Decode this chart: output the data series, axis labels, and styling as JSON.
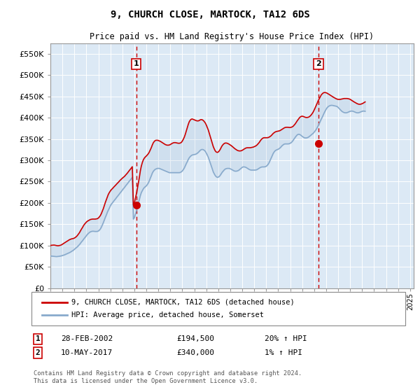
{
  "title": "9, CHURCH CLOSE, MARTOCK, TA12 6DS",
  "subtitle": "Price paid vs. HM Land Registry's House Price Index (HPI)",
  "bg_color": "#dce9f5",
  "plot_bg_color": "#dce9f5",
  "red_line_color": "#cc0000",
  "blue_line_color": "#88aacc",
  "ylim": [
    0,
    575000
  ],
  "yticks": [
    0,
    50000,
    100000,
    150000,
    200000,
    250000,
    300000,
    350000,
    400000,
    450000,
    500000,
    550000
  ],
  "ytick_labels": [
    "£0",
    "£50K",
    "£100K",
    "£150K",
    "£200K",
    "£250K",
    "£300K",
    "£350K",
    "£400K",
    "£450K",
    "£500K",
    "£550K"
  ],
  "sale1_date": 2002.16,
  "sale1_price": 194500,
  "sale1_label": "1",
  "sale2_date": 2017.36,
  "sale2_price": 340000,
  "sale2_label": "2",
  "legend_line1": "9, CHURCH CLOSE, MARTOCK, TA12 6DS (detached house)",
  "legend_line2": "HPI: Average price, detached house, Somerset",
  "table_row1": [
    "1",
    "28-FEB-2002",
    "£194,500",
    "20% ↑ HPI"
  ],
  "table_row2": [
    "2",
    "10-MAY-2017",
    "£340,000",
    "1% ↑ HPI"
  ],
  "footnote": "Contains HM Land Registry data © Crown copyright and database right 2024.\nThis data is licensed under the Open Government Licence v3.0.",
  "hpi_data": {
    "years": [
      1995.0,
      1995.08,
      1995.17,
      1995.25,
      1995.33,
      1995.42,
      1995.5,
      1995.58,
      1995.67,
      1995.75,
      1995.83,
      1995.92,
      1996.0,
      1996.08,
      1996.17,
      1996.25,
      1996.33,
      1996.42,
      1996.5,
      1996.58,
      1996.67,
      1996.75,
      1996.83,
      1996.92,
      1997.0,
      1997.08,
      1997.17,
      1997.25,
      1997.33,
      1997.42,
      1997.5,
      1997.58,
      1997.67,
      1997.75,
      1997.83,
      1997.92,
      1998.0,
      1998.08,
      1998.17,
      1998.25,
      1998.33,
      1998.42,
      1998.5,
      1998.58,
      1998.67,
      1998.75,
      1998.83,
      1998.92,
      1999.0,
      1999.08,
      1999.17,
      1999.25,
      1999.33,
      1999.42,
      1999.5,
      1999.58,
      1999.67,
      1999.75,
      1999.83,
      1999.92,
      2000.0,
      2000.08,
      2000.17,
      2000.25,
      2000.33,
      2000.42,
      2000.5,
      2000.58,
      2000.67,
      2000.75,
      2000.83,
      2000.92,
      2001.0,
      2001.08,
      2001.17,
      2001.25,
      2001.33,
      2001.42,
      2001.5,
      2001.58,
      2001.67,
      2001.75,
      2001.83,
      2001.92,
      2002.0,
      2002.08,
      2002.17,
      2002.25,
      2002.33,
      2002.42,
      2002.5,
      2002.58,
      2002.67,
      2002.75,
      2002.83,
      2002.92,
      2003.0,
      2003.08,
      2003.17,
      2003.25,
      2003.33,
      2003.42,
      2003.5,
      2003.58,
      2003.67,
      2003.75,
      2003.83,
      2003.92,
      2004.0,
      2004.08,
      2004.17,
      2004.25,
      2004.33,
      2004.42,
      2004.5,
      2004.58,
      2004.67,
      2004.75,
      2004.83,
      2004.92,
      2005.0,
      2005.08,
      2005.17,
      2005.25,
      2005.33,
      2005.42,
      2005.5,
      2005.58,
      2005.67,
      2005.75,
      2005.83,
      2005.92,
      2006.0,
      2006.08,
      2006.17,
      2006.25,
      2006.33,
      2006.42,
      2006.5,
      2006.58,
      2006.67,
      2006.75,
      2006.83,
      2006.92,
      2007.0,
      2007.08,
      2007.17,
      2007.25,
      2007.33,
      2007.42,
      2007.5,
      2007.58,
      2007.67,
      2007.75,
      2007.83,
      2007.92,
      2008.0,
      2008.08,
      2008.17,
      2008.25,
      2008.33,
      2008.42,
      2008.5,
      2008.58,
      2008.67,
      2008.75,
      2008.83,
      2008.92,
      2009.0,
      2009.08,
      2009.17,
      2009.25,
      2009.33,
      2009.42,
      2009.5,
      2009.58,
      2009.67,
      2009.75,
      2009.83,
      2009.92,
      2010.0,
      2010.08,
      2010.17,
      2010.25,
      2010.33,
      2010.42,
      2010.5,
      2010.58,
      2010.67,
      2010.75,
      2010.83,
      2010.92,
      2011.0,
      2011.08,
      2011.17,
      2011.25,
      2011.33,
      2011.42,
      2011.5,
      2011.58,
      2011.67,
      2011.75,
      2011.83,
      2011.92,
      2012.0,
      2012.08,
      2012.17,
      2012.25,
      2012.33,
      2012.42,
      2012.5,
      2012.58,
      2012.67,
      2012.75,
      2012.83,
      2012.92,
      2013.0,
      2013.08,
      2013.17,
      2013.25,
      2013.33,
      2013.42,
      2013.5,
      2013.58,
      2013.67,
      2013.75,
      2013.83,
      2013.92,
      2014.0,
      2014.08,
      2014.17,
      2014.25,
      2014.33,
      2014.42,
      2014.5,
      2014.58,
      2014.67,
      2014.75,
      2014.83,
      2014.92,
      2015.0,
      2015.08,
      2015.17,
      2015.25,
      2015.33,
      2015.42,
      2015.5,
      2015.58,
      2015.67,
      2015.75,
      2015.83,
      2015.92,
      2016.0,
      2016.08,
      2016.17,
      2016.25,
      2016.33,
      2016.42,
      2016.5,
      2016.58,
      2016.67,
      2016.75,
      2016.83,
      2016.92,
      2017.0,
      2017.08,
      2017.17,
      2017.25,
      2017.33,
      2017.42,
      2017.5,
      2017.58,
      2017.67,
      2017.75,
      2017.83,
      2017.92,
      2018.0,
      2018.08,
      2018.17,
      2018.25,
      2018.33,
      2018.42,
      2018.5,
      2018.58,
      2018.67,
      2018.75,
      2018.83,
      2018.92,
      2019.0,
      2019.08,
      2019.17,
      2019.25,
      2019.33,
      2019.42,
      2019.5,
      2019.58,
      2019.67,
      2019.75,
      2019.83,
      2019.92,
      2020.0,
      2020.08,
      2020.17,
      2020.25,
      2020.33,
      2020.42,
      2020.5,
      2020.58,
      2020.67,
      2020.75,
      2020.83,
      2020.92,
      2021.0,
      2021.08,
      2021.17,
      2021.25,
      2021.33,
      2021.42,
      2021.5,
      2021.58,
      2021.67,
      2021.75,
      2021.83,
      2021.92,
      2022.0,
      2022.08,
      2022.17,
      2022.25,
      2022.33,
      2022.42,
      2022.5,
      2022.58,
      2022.67,
      2022.75,
      2022.83,
      2022.92,
      2023.0,
      2023.08,
      2023.17,
      2023.25,
      2023.33,
      2023.42,
      2023.5,
      2023.58,
      2023.67,
      2023.75,
      2023.83,
      2023.92,
      2024.0,
      2024.08,
      2024.17,
      2024.25,
      2024.33,
      2024.42,
      2024.5
    ],
    "hpi_values": [
      75000,
      75200,
      75000,
      74800,
      74500,
      74200,
      74000,
      74200,
      74500,
      74800,
      75200,
      75800,
      76500,
      77200,
      78000,
      79000,
      80000,
      81000,
      82000,
      83200,
      84500,
      86000,
      87500,
      89000,
      91000,
      93000,
      95000,
      97000,
      99500,
      102000,
      105000,
      108000,
      111000,
      114000,
      117000,
      120000,
      123000,
      126000,
      128500,
      130500,
      132000,
      133000,
      133500,
      133500,
      133200,
      133000,
      133000,
      133200,
      134000,
      136000,
      139000,
      143000,
      148000,
      154000,
      160000,
      166000,
      172000,
      178000,
      183000,
      188000,
      193000,
      197000,
      200000,
      203000,
      206000,
      209000,
      212000,
      215000,
      218000,
      221000,
      224000,
      227000,
      230000,
      233000,
      236000,
      239000,
      242000,
      245000,
      248000,
      251000,
      254000,
      257000,
      260000,
      162000,
      165000,
      173000,
      181000,
      190000,
      199000,
      208000,
      217000,
      224000,
      229000,
      233000,
      236000,
      238000,
      240000,
      243000,
      247000,
      252000,
      258000,
      264000,
      270000,
      274000,
      277000,
      279000,
      280000,
      281000,
      281000,
      281000,
      280000,
      279000,
      278000,
      277000,
      276000,
      275000,
      274000,
      273000,
      272000,
      271000,
      271000,
      271000,
      271000,
      271000,
      271000,
      271000,
      271000,
      271000,
      271000,
      271000,
      271500,
      273000,
      275000,
      278000,
      282000,
      287000,
      292000,
      297000,
      302000,
      306000,
      309000,
      311000,
      312500,
      313000,
      313500,
      314000,
      315000,
      316500,
      318500,
      321000,
      323500,
      325000,
      325500,
      325000,
      323500,
      321000,
      317000,
      312500,
      307000,
      300500,
      293500,
      286500,
      279500,
      273000,
      268000,
      264000,
      261500,
      260000,
      260500,
      262000,
      265000,
      268500,
      272000,
      275000,
      277500,
      279500,
      280500,
      281000,
      281000,
      281000,
      280000,
      279000,
      277500,
      276000,
      275000,
      274500,
      274500,
      275000,
      276000,
      277500,
      279500,
      281500,
      283500,
      284500,
      284500,
      284000,
      283000,
      281500,
      280000,
      278500,
      277500,
      277000,
      277000,
      277000,
      277000,
      277000,
      277500,
      278500,
      280000,
      281500,
      283000,
      284000,
      284500,
      284500,
      284500,
      285000,
      286000,
      288000,
      291000,
      295000,
      300000,
      305500,
      311000,
      316000,
      320000,
      322500,
      324000,
      325000,
      326000,
      327500,
      329500,
      332000,
      334500,
      336500,
      338000,
      338500,
      338500,
      338500,
      338500,
      339000,
      340000,
      341500,
      344000,
      347000,
      350500,
      354000,
      357000,
      359500,
      361000,
      361000,
      360000,
      358000,
      356000,
      354500,
      353000,
      352500,
      352500,
      353000,
      354000,
      355500,
      357500,
      359500,
      361500,
      363500,
      366000,
      369000,
      372500,
      376500,
      381000,
      386000,
      391000,
      396000,
      401000,
      406000,
      411000,
      416000,
      420000,
      423500,
      426000,
      427500,
      428500,
      429000,
      429000,
      428500,
      428000,
      427500,
      427000,
      426000,
      424000,
      421500,
      419000,
      416500,
      414500,
      413000,
      412000,
      411500,
      411500,
      412000,
      413000,
      414000,
      415000,
      415500,
      415500,
      415000,
      414000,
      413000,
      412000,
      411500,
      411500,
      412000,
      413000,
      414000,
      415000,
      415500,
      415500,
      415000,
      414000,
      413000,
      412000,
      411500,
      411500,
      412000,
      413000,
      414000,
      415500,
      417000
    ],
    "price_values": [
      100000,
      100500,
      100800,
      101000,
      101000,
      100500,
      100000,
      99500,
      99500,
      100000,
      100500,
      101500,
      103000,
      104500,
      106000,
      107500,
      109000,
      110500,
      112000,
      113500,
      114500,
      115500,
      116000,
      116500,
      117500,
      119000,
      121000,
      123500,
      126500,
      130000,
      134000,
      138000,
      142000,
      146000,
      149500,
      152500,
      155000,
      157000,
      158500,
      160000,
      161000,
      161500,
      162000,
      162000,
      162000,
      162000,
      162500,
      163000,
      164500,
      167000,
      170500,
      175000,
      180500,
      187000,
      194000,
      201000,
      208000,
      214500,
      220000,
      224500,
      228000,
      231000,
      233500,
      236000,
      238500,
      241000,
      243500,
      246000,
      248500,
      251000,
      253500,
      256000,
      258000,
      260000,
      262000,
      264500,
      267000,
      270000,
      273000,
      276000,
      279000,
      282000,
      285000,
      195000,
      199000,
      210000,
      221000,
      233000,
      246000,
      260000,
      275000,
      286000,
      295000,
      301000,
      305000,
      308000,
      310000,
      312500,
      315500,
      319500,
      324500,
      330000,
      336000,
      341000,
      344500,
      346500,
      347000,
      347000,
      346500,
      345500,
      344500,
      343000,
      341500,
      340000,
      338500,
      337000,
      336000,
      335500,
      335500,
      336000,
      337000,
      338500,
      340000,
      341000,
      341500,
      341500,
      341000,
      340500,
      340000,
      340000,
      340500,
      342000,
      345000,
      349000,
      354500,
      361000,
      368500,
      376500,
      384500,
      390500,
      394500,
      396500,
      397000,
      396000,
      395000,
      394000,
      393000,
      392500,
      392500,
      393500,
      395000,
      395500,
      395000,
      393500,
      391000,
      387500,
      383000,
      377500,
      371000,
      363500,
      355500,
      347500,
      339500,
      332500,
      326500,
      322000,
      319500,
      318500,
      319500,
      322000,
      326000,
      330500,
      334500,
      337500,
      339500,
      340500,
      340500,
      340000,
      339000,
      337500,
      336000,
      334500,
      332500,
      330500,
      328500,
      326500,
      325000,
      323500,
      322500,
      322000,
      322000,
      322500,
      323500,
      325000,
      326500,
      328000,
      329000,
      329500,
      329500,
      329500,
      329500,
      330000,
      330500,
      331000,
      332000,
      333000,
      334500,
      336500,
      339000,
      342000,
      345500,
      348500,
      351000,
      352500,
      353000,
      353000,
      353000,
      353000,
      353500,
      354500,
      356000,
      358000,
      360500,
      363000,
      365000,
      366500,
      367500,
      368000,
      368500,
      369000,
      370000,
      371500,
      373000,
      374500,
      376000,
      377000,
      377500,
      377500,
      377500,
      377000,
      377000,
      377500,
      378500,
      380000,
      382500,
      385500,
      389000,
      392500,
      396000,
      399000,
      401500,
      403000,
      403500,
      403000,
      402000,
      401000,
      400500,
      400500,
      401000,
      402000,
      404000,
      406500,
      409500,
      413500,
      418000,
      423000,
      428500,
      434000,
      439500,
      444500,
      449000,
      453000,
      456000,
      458000,
      459000,
      459000,
      458500,
      457500,
      456000,
      454500,
      453000,
      451500,
      450000,
      448500,
      447000,
      445500,
      444500,
      443500,
      443000,
      443000,
      443000,
      443500,
      444000,
      444500,
      445000,
      445000,
      445000,
      445000,
      444500,
      444000,
      443000,
      441500,
      440000,
      438500,
      437000,
      435500,
      434000,
      433000,
      432000,
      431500,
      431500,
      432000,
      433000,
      434000,
      435500,
      437000
    ]
  }
}
